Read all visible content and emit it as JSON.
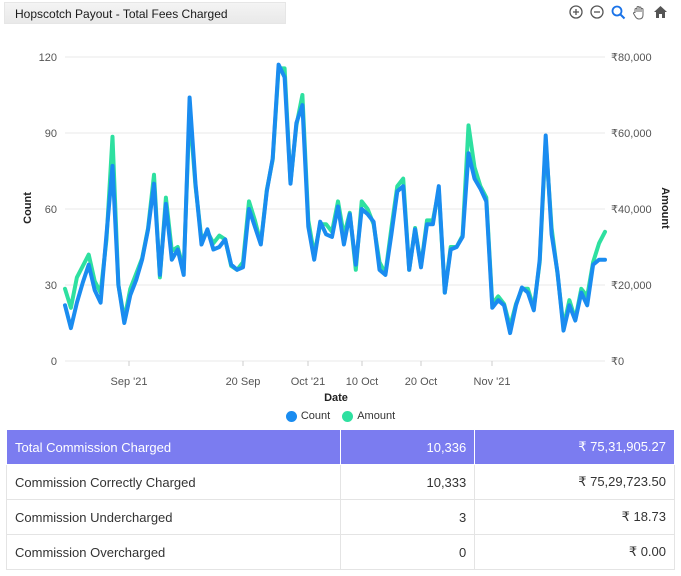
{
  "header": {
    "title": "Hopscotch Payout - Total Fees Charged"
  },
  "toolbar": {
    "icons": [
      "zoom-in-icon",
      "zoom-out-icon",
      "zoom-search-icon",
      "pan-hand-icon",
      "home-icon"
    ]
  },
  "colors": {
    "count": "#1a8cf0",
    "amount": "#2ee0a0",
    "header_row": "#7b7cf0"
  },
  "chart_data": {
    "type": "line",
    "xlabel": "Date",
    "ylabel": "Count",
    "y2label": "Amount",
    "ylim": [
      0,
      120
    ],
    "y2lim": [
      0,
      80000
    ],
    "yticks": [
      "0",
      "30",
      "60",
      "90",
      "120"
    ],
    "y2ticks": [
      "₹0",
      "₹20,000",
      "₹40,000",
      "₹60,000",
      "₹80,000"
    ],
    "xticks": [
      "Sep '21",
      "20 Sep",
      "Oct '21",
      "10 Oct",
      "20 Oct",
      "Nov '21"
    ],
    "grid": true,
    "legend": "bottom-center",
    "series": [
      {
        "name": "Count",
        "axis": "left",
        "values": [
          22,
          13,
          23,
          31,
          38,
          28,
          23,
          50,
          77,
          30,
          15,
          26,
          32,
          40,
          52,
          70,
          34,
          62,
          40,
          44,
          34,
          104,
          70,
          46,
          52,
          44,
          45,
          48,
          38,
          36,
          37,
          60,
          53,
          46,
          67,
          80,
          117,
          112,
          70,
          94,
          101,
          53,
          40,
          55,
          50,
          49,
          61,
          46,
          58,
          38,
          60,
          58,
          55,
          36,
          34,
          50,
          67,
          69,
          36,
          52,
          37,
          54,
          54,
          69,
          27,
          44,
          45,
          49,
          82,
          72,
          68,
          63,
          21,
          24,
          22,
          11,
          22,
          29,
          27,
          20,
          40,
          89,
          50,
          35,
          12,
          22,
          16,
          27,
          22,
          38,
          40,
          40
        ],
        "values_note": ""
      },
      {
        "name": "Amount",
        "axis": "right",
        "values": [
          19000,
          14000,
          22000,
          25000,
          28000,
          21000,
          18000,
          32000,
          59000,
          20000,
          11000,
          19000,
          23000,
          27000,
          35000,
          49000,
          22000,
          43000,
          29000,
          30000,
          24000,
          66000,
          46000,
          32000,
          34000,
          31000,
          33000,
          32000,
          25000,
          24000,
          26000,
          42000,
          37000,
          31000,
          45000,
          53000,
          77000,
          77000,
          47000,
          62000,
          70000,
          37000,
          28000,
          36000,
          36000,
          34000,
          42000,
          33000,
          39000,
          24000,
          42000,
          40000,
          36000,
          26000,
          23000,
          35000,
          46000,
          48000,
          24000,
          35000,
          25000,
          37000,
          37000,
          45000,
          18000,
          30000,
          30000,
          33000,
          62000,
          51000,
          46000,
          43000,
          15000,
          17000,
          15000,
          9000,
          15000,
          19000,
          19000,
          14000,
          26000,
          58000,
          35000,
          23000,
          9000,
          16000,
          11000,
          19000,
          17000,
          26000,
          31000,
          34000
        ]
      }
    ]
  },
  "table": {
    "rows": [
      {
        "label": "Total Commission Charged",
        "count": "10,336",
        "amount": "₹ 75,31,905.27"
      },
      {
        "label": "Commission Correctly Charged",
        "count": "10,333",
        "amount": "₹ 75,29,723.50"
      },
      {
        "label": "Commission Undercharged",
        "count": "3",
        "amount": "₹ 18.73"
      },
      {
        "label": "Commission Overcharged",
        "count": "0",
        "amount": "₹ 0.00"
      }
    ]
  }
}
